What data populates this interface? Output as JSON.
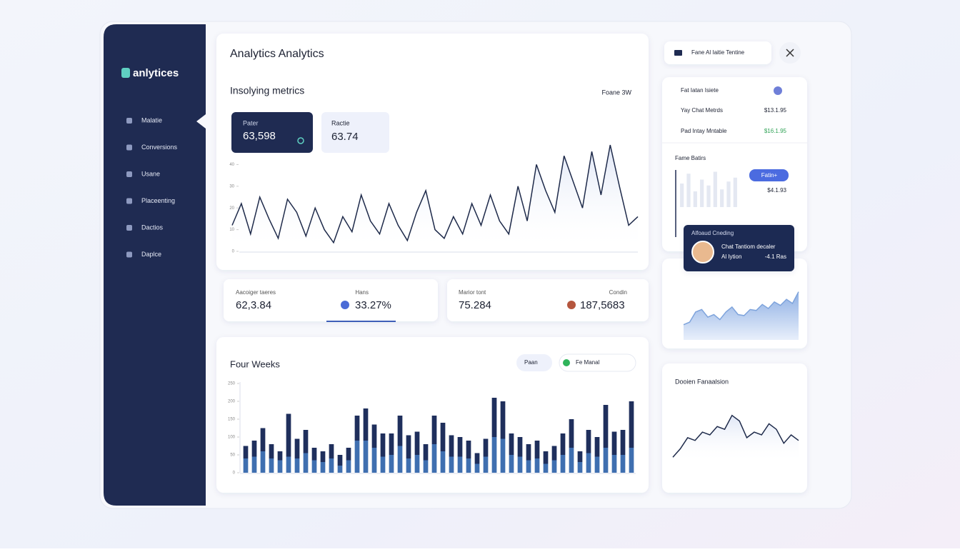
{
  "sidebar": {
    "logo": "anlytices",
    "nav": [
      "Malatie",
      "Conversions",
      "Usane",
      "Placeenting",
      "Dactios",
      "Daplce"
    ]
  },
  "main": {
    "title": "Analytics Analytics",
    "subtitle": "Insolying metrics",
    "range": "Foane 3W",
    "stats": [
      {
        "label": "Pater",
        "value": "63,598"
      },
      {
        "label": "Ractie",
        "value": "63.74"
      }
    ],
    "chart": {
      "type": "line",
      "color": "#1e2a4a",
      "ylim": [
        0,
        50
      ],
      "yticks": [
        0,
        10,
        20,
        30,
        40
      ],
      "values": [
        12,
        22,
        8,
        25,
        15,
        6,
        24,
        18,
        7,
        20,
        10,
        4,
        16,
        9,
        26,
        14,
        8,
        22,
        12,
        5,
        18,
        28,
        10,
        6,
        16,
        8,
        22,
        12,
        26,
        14,
        8,
        30,
        14,
        40,
        28,
        18,
        44,
        32,
        20,
        46,
        26,
        49,
        30,
        12,
        16
      ]
    }
  },
  "kpis": [
    {
      "label": "Aacoiger taeres",
      "value": "62,3.84",
      "label2": "Hans",
      "value2": "33.27%"
    },
    {
      "label": "Marior tont",
      "value": "75.284",
      "label2": "Condin",
      "value2": "187,5683"
    }
  ],
  "weekly": {
    "title": "Four Weeks",
    "dropdown": "Paan",
    "toggle": "Fe Manal",
    "chart": {
      "type": "bar",
      "ylim": [
        0,
        250
      ],
      "yticks": [
        0,
        50,
        100,
        150,
        200,
        250
      ],
      "series": [
        {
          "color": "#3f6fb0",
          "values": [
            40,
            45,
            60,
            40,
            35,
            45,
            40,
            55,
            35,
            30,
            40,
            20,
            35,
            90,
            90,
            70,
            45,
            50,
            75,
            40,
            50,
            35,
            80,
            60,
            45,
            45,
            40,
            25,
            45,
            100,
            95,
            50,
            45,
            35,
            40,
            25,
            35,
            50,
            70,
            30,
            55,
            45,
            70,
            50,
            50,
            70
          ]
        },
        {
          "color": "#1f2f5c",
          "values": [
            35,
            45,
            65,
            40,
            25,
            120,
            55,
            65,
            35,
            30,
            40,
            30,
            35,
            70,
            90,
            65,
            65,
            60,
            85,
            65,
            65,
            45,
            80,
            80,
            60,
            55,
            50,
            30,
            50,
            110,
            105,
            60,
            55,
            45,
            50,
            35,
            40,
            60,
            80,
            30,
            65,
            55,
            120,
            65,
            70,
            130
          ]
        }
      ]
    }
  },
  "topbar": {
    "label": "Fane Al Iaitie Tentine"
  },
  "summary": {
    "title": "Fat Iatan Isiete",
    "rows": [
      {
        "label": "Yay Chat Metrds",
        "value": "$13.1.95"
      },
      {
        "label": "Pad Intay Mntable",
        "value": "$16.1.95"
      }
    ],
    "section": "Fame Batirs",
    "button": "Fatin+",
    "amount": "$4.1.93",
    "chart": {
      "type": "bar",
      "color": "#e4e8f2",
      "ylim": [
        0,
        100
      ],
      "values": [
        60,
        85,
        40,
        70,
        55,
        90,
        45,
        65,
        75
      ]
    }
  },
  "tooltip": {
    "title": "Alfoaud Cneding",
    "line1": "Chat Tantiom decaler",
    "line2": "Al Iytion",
    "delta": "-4.1 Ras"
  },
  "trend": {
    "chart": {
      "type": "area",
      "color": "#7fa4dc",
      "ylim": [
        0,
        100
      ],
      "values": [
        30,
        35,
        55,
        60,
        45,
        50,
        40,
        55,
        65,
        50,
        48,
        60,
        58,
        70,
        62,
        75,
        68,
        80,
        72,
        95
      ]
    }
  },
  "distribution": {
    "title": "Dooien Fanaalsion",
    "chart": {
      "type": "line",
      "color": "#1e2a4a",
      "ylim": [
        0,
        100
      ],
      "values": [
        10,
        25,
        45,
        40,
        55,
        50,
        65,
        60,
        85,
        75,
        45,
        55,
        50,
        70,
        60,
        35,
        50,
        40
      ]
    }
  }
}
